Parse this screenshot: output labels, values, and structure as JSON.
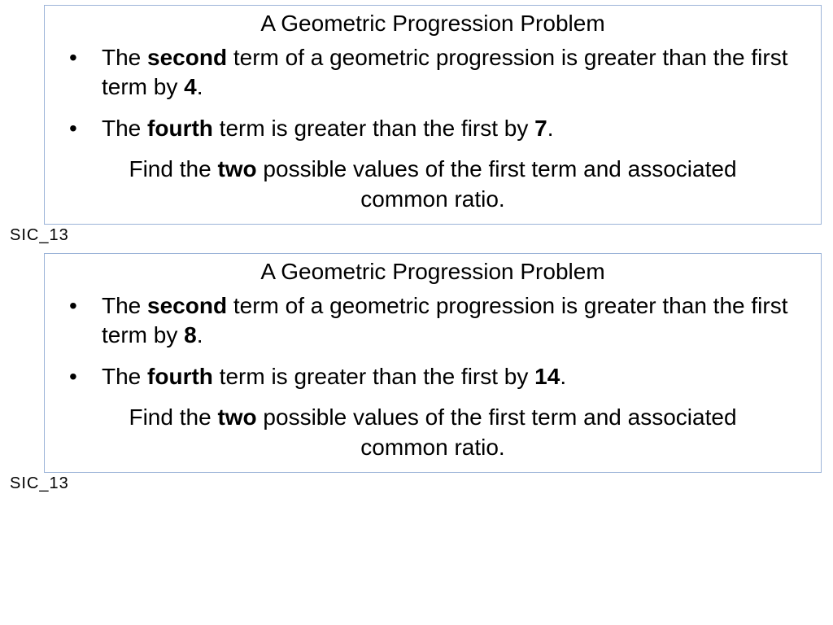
{
  "colors": {
    "border": "#9cb4d8",
    "background": "#ffffff",
    "text": "#000000"
  },
  "typography": {
    "font_family": "Comic Sans MS",
    "title_fontsize": 28,
    "body_fontsize": 28,
    "footer_fontsize": 20
  },
  "problems": [
    {
      "title": "A Geometric Progression Problem",
      "bullet1_pre": "The ",
      "bullet1_b1": "second",
      "bullet1_mid": " term of a geometric progression is greater than the first term by ",
      "bullet1_b2": "4",
      "bullet1_post": ".",
      "bullet2_pre": "The ",
      "bullet2_b1": "fourth",
      "bullet2_mid": " term is greater than the first by ",
      "bullet2_b2": "7",
      "bullet2_post": ".",
      "instr_pre": "Find the ",
      "instr_b": "two",
      "instr_post": " possible values of the first term and associated common ratio.",
      "footer": "SIC_13"
    },
    {
      "title": "A Geometric Progression Problem",
      "bullet1_pre": "The ",
      "bullet1_b1": "second",
      "bullet1_mid": " term of a geometric progression is greater than the first term by ",
      "bullet1_b2": "8",
      "bullet1_post": ".",
      "bullet2_pre": "The ",
      "bullet2_b1": "fourth",
      "bullet2_mid": " term is greater than the first by ",
      "bullet2_b2": "14",
      "bullet2_post": ".",
      "instr_pre": "Find the ",
      "instr_b": "two",
      "instr_post": " possible values of the first term and associated common ratio.",
      "footer": "SIC_13"
    }
  ]
}
